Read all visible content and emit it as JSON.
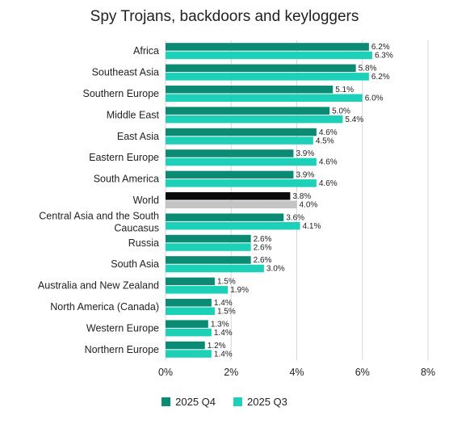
{
  "chart_data": {
    "type": "bar",
    "orientation": "horizontal",
    "title": "Spy Trojans, backdoors and keyloggers",
    "xlim": [
      0,
      8
    ],
    "xticks": [
      "0%",
      "2%",
      "4%",
      "6%",
      "8%"
    ],
    "grid": true,
    "legend_position": "bottom",
    "categories": [
      "Africa",
      "Southeast Asia",
      "Southern Europe",
      "Middle East",
      "East Asia",
      "Eastern Europe",
      "South America",
      "World",
      "Central Asia and the South Caucasus",
      "Russia",
      "South Asia",
      "Australia and New Zealand",
      "North America (Canada)",
      "Western Europe",
      "Northern Europe"
    ],
    "series": [
      {
        "name": "2025 Q4",
        "color": "#0b8a74",
        "highlight_color": "#0b0b0b",
        "values": [
          6.2,
          5.8,
          5.1,
          5.0,
          4.6,
          3.9,
          3.9,
          3.8,
          3.6,
          2.6,
          2.6,
          1.5,
          1.4,
          1.3,
          1.2
        ],
        "labels": [
          "6.2%",
          "5.8%",
          "5.1%",
          "5.0%",
          "4.6%",
          "3.9%",
          "3.9%",
          "3.8%",
          "3.6%",
          "2.6%",
          "2.6%",
          "1.5%",
          "1.4%",
          "1.3%",
          "1.2%"
        ]
      },
      {
        "name": "2025 Q3",
        "color": "#1cd1b8",
        "highlight_color": "#c4c4c4",
        "values": [
          6.3,
          6.2,
          6.0,
          5.4,
          4.5,
          4.6,
          4.6,
          4.0,
          4.1,
          2.6,
          3.0,
          1.9,
          1.5,
          1.4,
          1.4
        ],
        "labels": [
          "6.3%",
          "6.2%",
          "6.0%",
          "5.4%",
          "4.5%",
          "4.6%",
          "4.6%",
          "4.0%",
          "4.1%",
          "2.6%",
          "3.0%",
          "1.9%",
          "1.5%",
          "1.4%",
          "1.4%"
        ]
      }
    ],
    "highlight_category": "World"
  }
}
